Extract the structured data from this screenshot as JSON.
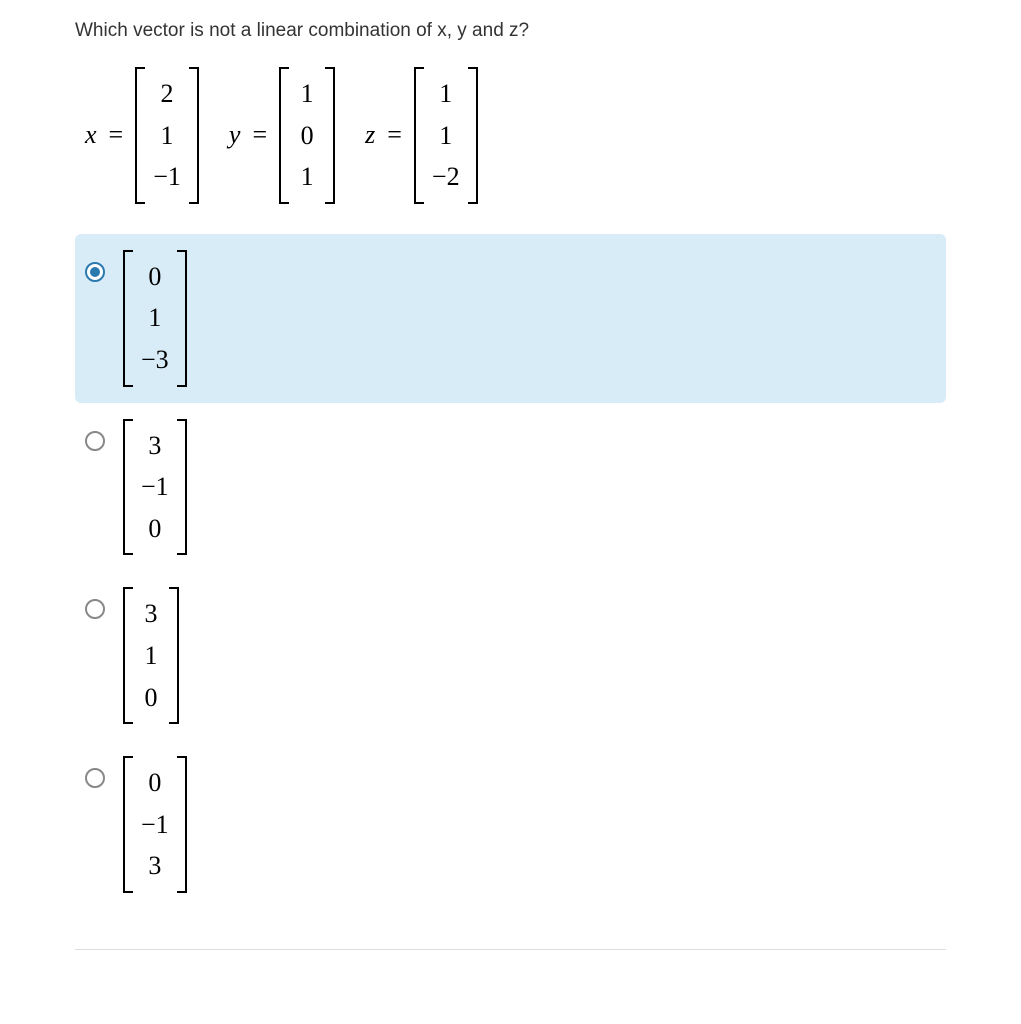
{
  "question": {
    "text": "Which vector is not a linear combination of x, y and z?",
    "text_color": "#333333",
    "fontsize": 19
  },
  "vectors": [
    {
      "label": "x",
      "values": [
        "2",
        "1",
        "−1"
      ]
    },
    {
      "label": "y",
      "values": [
        "1",
        "0",
        "1"
      ]
    },
    {
      "label": "z",
      "values": [
        "1",
        "1",
        "−2"
      ]
    }
  ],
  "options": [
    {
      "values": [
        "0",
        "1",
        "−3"
      ],
      "selected": true
    },
    {
      "values": [
        "3",
        "−1",
        "0"
      ],
      "selected": false
    },
    {
      "values": [
        "3",
        "1",
        "0"
      ],
      "selected": false
    },
    {
      "values": [
        "0",
        "−1",
        "3"
      ],
      "selected": false
    }
  ],
  "colors": {
    "selected_bg": "#d7ecf7",
    "radio_checked": "#2a7ab0",
    "radio_border": "#888888",
    "background": "#ffffff",
    "divider": "#dddddd"
  },
  "math_fontsize": 26
}
